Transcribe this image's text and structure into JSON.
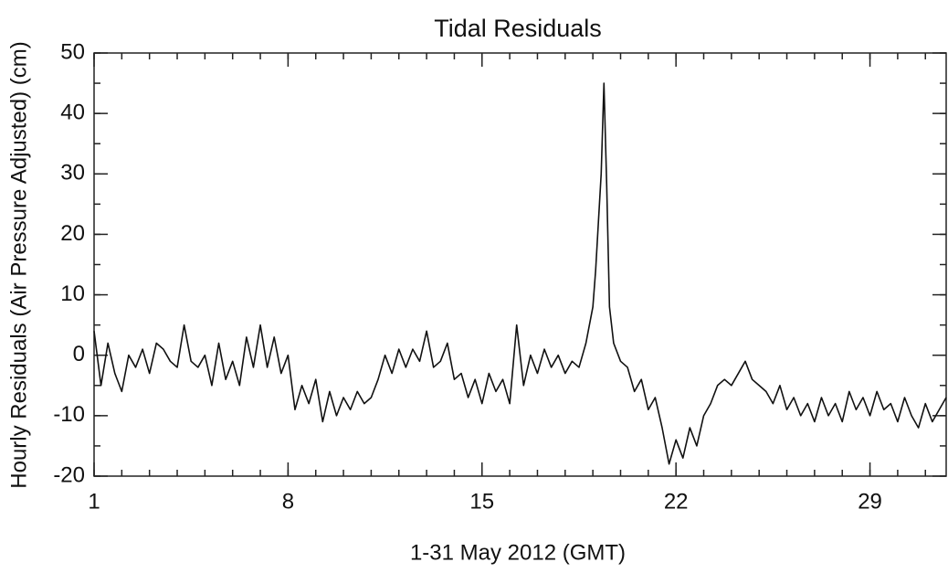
{
  "chart_data": {
    "type": "line",
    "title": "Tidal Residuals",
    "x_label": "1-31 May 2012 (GMT)",
    "y_label": "Hourly Residuals (Air Pressure Adjusted) (cm)",
    "x": [
      1,
      1.25,
      1.5,
      1.75,
      2,
      2.25,
      2.5,
      2.75,
      3,
      3.25,
      3.5,
      3.75,
      4,
      4.25,
      4.5,
      4.75,
      5,
      5.25,
      5.5,
      5.75,
      6,
      6.25,
      6.5,
      6.75,
      7,
      7.25,
      7.5,
      7.75,
      8,
      8.25,
      8.5,
      8.75,
      9,
      9.25,
      9.5,
      9.75,
      10,
      10.25,
      10.5,
      10.75,
      11,
      11.25,
      11.5,
      11.75,
      12,
      12.25,
      12.5,
      12.75,
      13,
      13.25,
      13.5,
      13.75,
      14,
      14.25,
      14.5,
      14.75,
      15,
      15.25,
      15.5,
      15.75,
      16,
      16.25,
      16.5,
      16.75,
      17,
      17.25,
      17.5,
      17.75,
      18,
      18.25,
      18.5,
      18.75,
      19,
      19.1,
      19.2,
      19.3,
      19.4,
      19.5,
      19.6,
      19.75,
      20,
      20.25,
      20.5,
      20.75,
      21,
      21.25,
      21.5,
      21.75,
      22,
      22.25,
      22.5,
      22.75,
      23,
      23.25,
      23.5,
      23.75,
      24,
      24.25,
      24.5,
      24.75,
      25,
      25.25,
      25.5,
      25.75,
      26,
      26.25,
      26.5,
      26.75,
      27,
      27.25,
      27.5,
      27.75,
      28,
      28.25,
      28.5,
      28.75,
      29,
      29.25,
      29.5,
      29.75,
      30,
      30.25,
      30.5,
      30.75,
      31,
      31.25,
      31.5,
      31.75
    ],
    "series": [
      {
        "name": "Residuals",
        "color": "#111111",
        "values": [
          4,
          -5,
          2,
          -3,
          -6,
          0,
          -2,
          1,
          -3,
          2,
          1,
          -1,
          -2,
          5,
          -1,
          -2,
          0,
          -5,
          2,
          -4,
          -1,
          -5,
          3,
          -2,
          5,
          -2,
          3,
          -3,
          0,
          -9,
          -5,
          -8,
          -4,
          -11,
          -6,
          -10,
          -7,
          -9,
          -6,
          -8,
          -7,
          -4,
          0,
          -3,
          1,
          -2,
          1,
          -1,
          4,
          -2,
          -1,
          2,
          -4,
          -3,
          -7,
          -4,
          -8,
          -3,
          -6,
          -4,
          -8,
          5,
          -5,
          0,
          -3,
          1,
          -2,
          0,
          -3,
          -1,
          -2,
          2,
          8,
          14,
          22,
          30,
          45,
          28,
          8,
          2,
          -1,
          -2,
          -6,
          -4,
          -9,
          -7,
          -12,
          -18,
          -14,
          -17,
          -12,
          -15,
          -10,
          -8,
          -5,
          -4,
          -5,
          -3,
          -1,
          -4,
          -5,
          -6,
          -8,
          -5,
          -9,
          -7,
          -10,
          -8,
          -11,
          -7,
          -10,
          -8,
          -11,
          -6,
          -9,
          -7,
          -10,
          -6,
          -9,
          -8,
          -11,
          -7,
          -10,
          -12,
          -8,
          -11,
          -9,
          -7
        ]
      }
    ],
    "xlim": [
      1,
      31.75
    ],
    "xticks": [
      1,
      8,
      15,
      22,
      29
    ],
    "ylim": [
      -20,
      50
    ],
    "yticks": [
      -20,
      -10,
      0,
      10,
      20,
      30,
      40,
      50
    ]
  }
}
